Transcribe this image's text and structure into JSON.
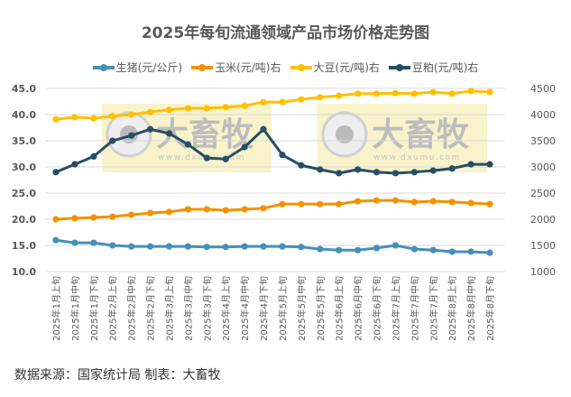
{
  "chart_data": {
    "type": "line",
    "title": "2025年每旬流通领域产品市场价格走势图",
    "categories": [
      "2025年1月上旬",
      "2025年1月中旬",
      "2025年1月下旬",
      "2025年2月上旬",
      "2025年2月中旬",
      "2025年2月下旬",
      "2025年3月上旬",
      "2025年3月中旬",
      "2025年3月下旬",
      "2025年4月上旬",
      "2025年4月中旬",
      "2025年4月下旬",
      "2025年5月上旬",
      "2025年5月中旬",
      "2025年5月下旬",
      "2025年6月上旬",
      "2025年6月中旬",
      "2025年6月下旬",
      "2025年7月上旬",
      "2025年7月中旬",
      "2025年7月下旬",
      "2025年8月上旬",
      "2025年8月中旬",
      "2025年8月下旬"
    ],
    "series": [
      {
        "name": "生猪(元/公斤)",
        "axis": "left",
        "color": "#4590B8",
        "values": [
          16.0,
          15.5,
          15.5,
          15.0,
          14.8,
          14.8,
          14.8,
          14.8,
          14.7,
          14.7,
          14.8,
          14.8,
          14.8,
          14.7,
          14.3,
          14.1,
          14.1,
          14.5,
          15.0,
          14.3,
          14.1,
          13.8,
          13.8,
          13.6
        ]
      },
      {
        "name": "玉米(元/吨)右",
        "axis": "right",
        "color": "#F39200",
        "values": [
          2000,
          2020,
          2035,
          2050,
          2085,
          2120,
          2140,
          2190,
          2190,
          2170,
          2190,
          2210,
          2290,
          2290,
          2290,
          2290,
          2345,
          2360,
          2360,
          2330,
          2345,
          2330,
          2310,
          2290
        ]
      },
      {
        "name": "大豆(元/吨)右",
        "axis": "right",
        "color": "#FFC000",
        "values": [
          3910,
          3950,
          3930,
          3970,
          4000,
          4050,
          4090,
          4120,
          4120,
          4140,
          4170,
          4240,
          4240,
          4290,
          4330,
          4360,
          4400,
          4400,
          4410,
          4400,
          4430,
          4400,
          4450,
          4430
        ]
      },
      {
        "name": "豆粕(元/吨)右",
        "axis": "right",
        "color": "#264E66",
        "values": [
          2900,
          3050,
          3200,
          3500,
          3600,
          3720,
          3640,
          3430,
          3170,
          3150,
          3380,
          3720,
          3230,
          3030,
          2950,
          2880,
          2950,
          2900,
          2880,
          2900,
          2930,
          2970,
          3050,
          3050
        ]
      }
    ],
    "left_axis": {
      "min": 10,
      "max": 45,
      "step": 5,
      "ticks": [
        "45.0",
        "40.0",
        "35.0",
        "30.0",
        "25.0",
        "20.0",
        "15.0",
        "10.0"
      ]
    },
    "right_axis": {
      "min": 1000,
      "max": 4500,
      "step": 500,
      "ticks": [
        "4500",
        "4000",
        "3500",
        "3000",
        "2500",
        "2000",
        "1500",
        "1000"
      ]
    },
    "grid": true,
    "legend_position": "top"
  },
  "watermark": {
    "brand": "大畜牧",
    "url": "www.dxumu.com"
  },
  "footer": "数据来源：国家统计局 制表：大畜牧"
}
